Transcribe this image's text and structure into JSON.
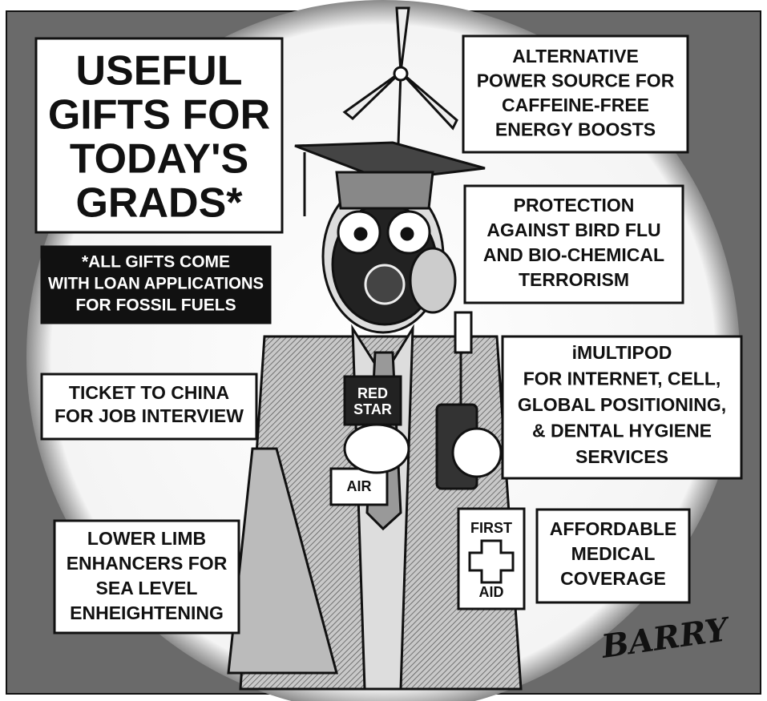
{
  "title": [
    "USEFUL",
    "GIFTS FOR",
    "TODAY'S",
    "GRADS*"
  ],
  "footnote": [
    "*ALL GIFTS COME",
    "WITH LOAN APPLICATIONS",
    "FOR FOSSIL FUELS"
  ],
  "captions": [
    {
      "lines": [
        "ALTERNATIVE",
        "POWER SOURCE FOR",
        "CAFFEINE-FREE",
        "ENERGY BOOSTS"
      ]
    },
    {
      "lines": [
        "PROTECTION",
        "AGAINST BIRD FLU",
        "AND BIO-CHEMICAL",
        "TERRORISM"
      ]
    },
    {
      "lines": [
        "iMULTIPOD",
        "FOR INTERNET, CELL,",
        "GLOBAL POSITIONING,",
        "& DENTAL HYGIENE",
        "SERVICES"
      ]
    },
    {
      "lines": [
        "TICKET TO CHINA",
        "FOR JOB INTERVIEW"
      ]
    },
    {
      "lines": [
        "AFFORDABLE",
        "MEDICAL",
        "COVERAGE"
      ]
    },
    {
      "lines": [
        "LOWER LIMB",
        "ENHANCERS FOR",
        "SEA LEVEL",
        "ENHEIGHTENING"
      ]
    }
  ],
  "props": {
    "ticket": [
      "RED",
      "STAR"
    ],
    "ticket_stub": "AIR",
    "kit": [
      "FIRST",
      "AID"
    ]
  },
  "signature": "BARRY"
}
